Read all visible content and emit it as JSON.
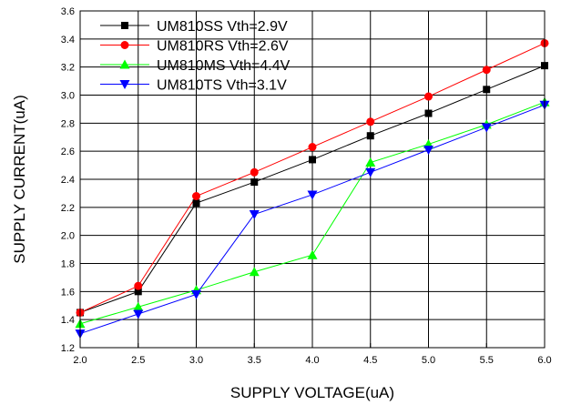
{
  "chart_data": {
    "type": "line",
    "xlabel": "SUPPLY VOLTAGE(uA)",
    "ylabel": "SUPPLY CURRENT(uA)",
    "xlim": [
      2.0,
      6.0
    ],
    "ylim": [
      1.2,
      3.6
    ],
    "x_ticks": [
      "2.0",
      "2.5",
      "3.0",
      "3.5",
      "4.0",
      "4.5",
      "5.0",
      "5.5",
      "6.0"
    ],
    "y_ticks": [
      "1.2",
      "1.4",
      "1.6",
      "1.8",
      "2.0",
      "2.2",
      "2.4",
      "2.6",
      "2.8",
      "3.0",
      "3.2",
      "3.4",
      "3.6"
    ],
    "grid": true,
    "legend_position": "top-left",
    "x": [
      2.0,
      2.5,
      3.0,
      3.5,
      4.0,
      4.5,
      5.0,
      5.5,
      6.0
    ],
    "series": [
      {
        "name": "UM810SS Vth=2.9V",
        "color": "#000000",
        "marker": "square",
        "values": [
          1.45,
          1.6,
          2.23,
          2.38,
          2.54,
          2.71,
          2.87,
          3.04,
          3.21
        ]
      },
      {
        "name": "UM810RS Vth=2.6V",
        "color": "#ff0000",
        "marker": "circle",
        "values": [
          1.45,
          1.64,
          2.28,
          2.45,
          2.63,
          2.81,
          2.99,
          3.18,
          3.37
        ]
      },
      {
        "name": "UM810MS Vth=4.4V",
        "color": "#00ff00",
        "marker": "triangle-up",
        "values": [
          1.37,
          1.49,
          1.61,
          1.74,
          1.86,
          2.52,
          2.65,
          2.79,
          2.95
        ]
      },
      {
        "name": "UM810TS Vth=3.1V",
        "color": "#0000ff",
        "marker": "triangle-down",
        "values": [
          1.3,
          1.44,
          1.58,
          2.15,
          2.29,
          2.45,
          2.61,
          2.77,
          2.93
        ]
      }
    ]
  }
}
